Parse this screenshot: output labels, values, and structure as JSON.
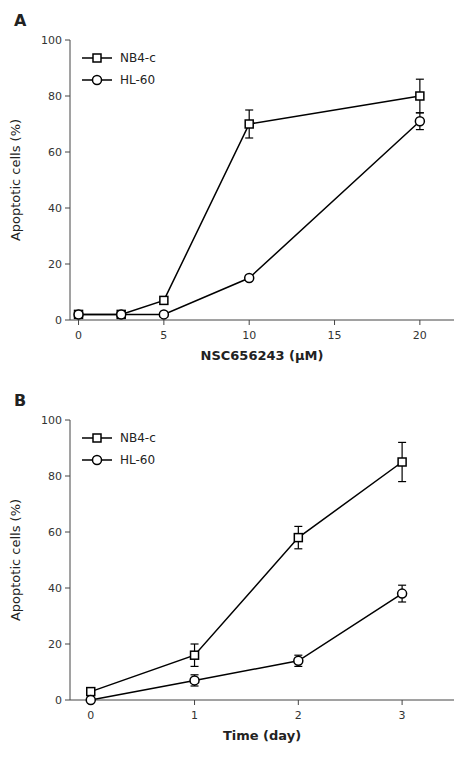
{
  "chart_data": [
    {
      "type": "line",
      "title": "A",
      "x_label": "NSC656243 (μM)",
      "y_label": "Apoptotic cells (%)",
      "x": [
        0,
        2.5,
        5,
        10,
        20
      ],
      "xlim": [
        -0.5,
        22
      ],
      "ylim": [
        0,
        100
      ],
      "xticks": [
        0,
        5,
        10,
        15,
        20
      ],
      "yticks": [
        0,
        20,
        40,
        60,
        80,
        100
      ],
      "legend": "upper left",
      "series": [
        {
          "name": "NB4-c",
          "color": "#000000",
          "marker": "square",
          "values": [
            2,
            2,
            7,
            70,
            80
          ],
          "yerr": [
            0,
            0,
            0,
            5,
            6
          ]
        },
        {
          "name": "HL-60",
          "color": "#000000",
          "marker": "circle",
          "values": [
            2,
            2,
            2,
            15,
            71
          ],
          "yerr": [
            0,
            0,
            0,
            0,
            3
          ]
        }
      ]
    },
    {
      "type": "line",
      "title": "B",
      "x_label": "Time (day)",
      "y_label": "Apoptotic cells (%)",
      "x": [
        0,
        1,
        2,
        3
      ],
      "xlim": [
        -0.2,
        3.5
      ],
      "ylim": [
        0,
        100
      ],
      "xticks": [
        0,
        1,
        2,
        3
      ],
      "yticks": [
        0,
        20,
        40,
        60,
        80,
        100
      ],
      "legend": "upper left",
      "series": [
        {
          "name": "NB4-c",
          "color": "#000000",
          "marker": "square",
          "values": [
            3,
            16,
            58,
            85
          ],
          "yerr": [
            0,
            4,
            4,
            7
          ]
        },
        {
          "name": "HL-60",
          "color": "#000000",
          "marker": "circle",
          "values": [
            0,
            7,
            14,
            38
          ],
          "yerr": [
            0,
            2,
            2,
            3
          ]
        }
      ]
    }
  ]
}
